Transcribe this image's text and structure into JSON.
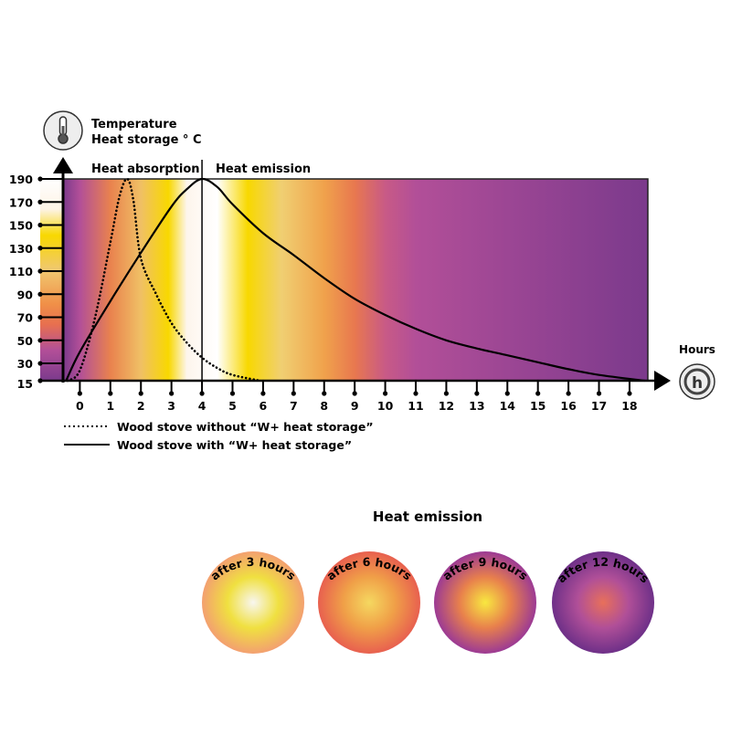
{
  "chart_data": {
    "type": "line",
    "ylabel_lines": [
      "Temperature",
      "Heat storage ° C"
    ],
    "xlabel": "Hours",
    "phase_labels": {
      "absorption": "Heat absorption",
      "emission": "Heat emission"
    },
    "yticks": [
      15,
      30,
      50,
      70,
      90,
      110,
      130,
      150,
      170,
      190
    ],
    "xticks": [
      0,
      1,
      2,
      3,
      4,
      5,
      6,
      7,
      8,
      9,
      10,
      11,
      12,
      13,
      14,
      15,
      16,
      17,
      18
    ],
    "xlim": [
      -0.55,
      18.6
    ],
    "ylim": [
      15,
      190
    ],
    "phase_split_hour": 4,
    "series": [
      {
        "name": "Wood stove without “W+ heat storage”",
        "style": "dotted",
        "x": [
          -0.4,
          0,
          0.5,
          1,
          1.3,
          1.55,
          1.75,
          2,
          2.5,
          3,
          3.5,
          4,
          4.5,
          5,
          5.9
        ],
        "y": [
          15,
          24,
          70,
          135,
          175,
          190,
          172,
          121,
          90,
          65,
          48,
          35,
          26,
          20,
          15
        ]
      },
      {
        "name": "Wood stove with “W+ heat storage”",
        "style": "solid",
        "x": [
          -0.45,
          0,
          1,
          2,
          3,
          3.5,
          4,
          4.5,
          5,
          6,
          7,
          8,
          9,
          10,
          11,
          12,
          13,
          14,
          15,
          16,
          17,
          18.5
        ],
        "y": [
          15,
          40,
          84,
          126,
          166,
          181,
          190,
          183,
          168,
          143,
          124,
          104,
          86,
          72,
          60,
          50,
          43,
          37,
          31,
          25,
          20,
          15
        ]
      }
    ],
    "background_stops": [
      {
        "hour": -0.55,
        "color": "#7b3a8c"
      },
      {
        "hour": 0,
        "color": "#b24f98"
      },
      {
        "hour": 1,
        "color": "#e9824e"
      },
      {
        "hour": 2,
        "color": "#f0c065"
      },
      {
        "hour": 2.9,
        "color": "#f8d800"
      },
      {
        "hour": 3.5,
        "color": "#fdf5ec"
      },
      {
        "hour": 4.5,
        "color": "#ffffff"
      },
      {
        "hour": 5.5,
        "color": "#f8d800"
      },
      {
        "hour": 6.6,
        "color": "#f0cf72"
      },
      {
        "hour": 8,
        "color": "#f0a24c"
      },
      {
        "hour": 9,
        "color": "#e8784f"
      },
      {
        "hour": 10,
        "color": "#c85a86"
      },
      {
        "hour": 11,
        "color": "#b24f98"
      },
      {
        "hour": 14,
        "color": "#9c4694"
      },
      {
        "hour": 18.6,
        "color": "#7b3a8c"
      }
    ]
  },
  "emission": {
    "title": "Heat emission",
    "circles": [
      {
        "label": "after 3 hours",
        "colors": [
          "#f8f6f0",
          "#f0e040",
          "#f3a070"
        ]
      },
      {
        "label": "after 6 hours",
        "colors": [
          "#f5d860",
          "#f0a048",
          "#e8604f"
        ]
      },
      {
        "label": "after 9 hours",
        "colors": [
          "#f8e840",
          "#e8804c",
          "#9c3a94"
        ]
      },
      {
        "label": "after 12 hours",
        "colors": [
          "#e8705a",
          "#b04f98",
          "#6e3088"
        ]
      }
    ]
  }
}
